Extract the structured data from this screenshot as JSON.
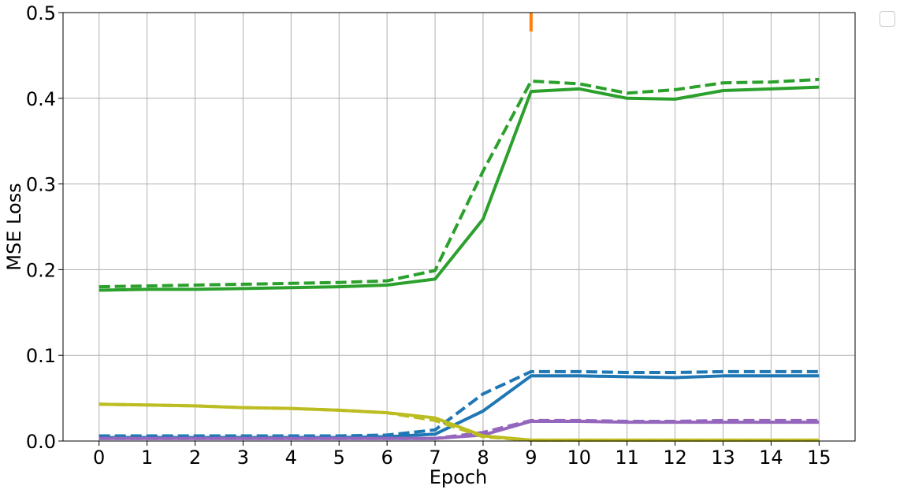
{
  "chart_data": {
    "type": "line",
    "xlabel": "Epoch",
    "ylabel": "MSE Loss",
    "xlim": [
      -0.75,
      15.75
    ],
    "ylim": [
      0.0,
      0.5
    ],
    "x": [
      0,
      1,
      2,
      3,
      4,
      5,
      6,
      7,
      8,
      9,
      10,
      11,
      12,
      13,
      14,
      15
    ],
    "x_ticks": [
      "0",
      "1",
      "2",
      "3",
      "4",
      "5",
      "6",
      "7",
      "8",
      "9",
      "10",
      "11",
      "12",
      "13",
      "14",
      "15"
    ],
    "y_ticks": [
      "0.0",
      "0.1",
      "0.2",
      "0.3",
      "0.4",
      "0.5"
    ],
    "y_tick_values": [
      0.0,
      0.1,
      0.2,
      0.3,
      0.4,
      0.5
    ],
    "grid": true,
    "legend": "outside top-right, empty",
    "series": [
      {
        "color": "#2ca02c",
        "style": "solid",
        "values": [
          0.176,
          0.177,
          0.177,
          0.178,
          0.179,
          0.18,
          0.182,
          0.189,
          0.259,
          0.408,
          0.411,
          0.4,
          0.399,
          0.409,
          0.411,
          0.413
        ]
      },
      {
        "color": "#2ca02c",
        "style": "dashed",
        "values": [
          0.18,
          0.181,
          0.182,
          0.183,
          0.184,
          0.185,
          0.187,
          0.199,
          0.315,
          0.42,
          0.417,
          0.406,
          0.41,
          0.418,
          0.419,
          0.422
        ]
      },
      {
        "color": "#1f77b4",
        "style": "solid",
        "values": [
          0.004,
          0.004,
          0.004,
          0.004,
          0.004,
          0.004,
          0.005,
          0.008,
          0.035,
          0.076,
          0.076,
          0.075,
          0.074,
          0.076,
          0.076,
          0.076
        ]
      },
      {
        "color": "#1f77b4",
        "style": "dashed",
        "values": [
          0.006,
          0.006,
          0.006,
          0.006,
          0.006,
          0.006,
          0.007,
          0.013,
          0.055,
          0.081,
          0.081,
          0.08,
          0.08,
          0.081,
          0.081,
          0.081
        ]
      },
      {
        "color": "#9467bd",
        "style": "solid",
        "values": [
          0.003,
          0.003,
          0.003,
          0.003,
          0.003,
          0.003,
          0.003,
          0.003,
          0.007,
          0.023,
          0.023,
          0.022,
          0.022,
          0.022,
          0.022,
          0.022
        ]
      },
      {
        "color": "#9467bd",
        "style": "dashed",
        "values": [
          0.003,
          0.003,
          0.003,
          0.003,
          0.003,
          0.003,
          0.003,
          0.003,
          0.01,
          0.024,
          0.024,
          0.023,
          0.023,
          0.024,
          0.024,
          0.024
        ]
      },
      {
        "color": "#bcbd22",
        "style": "solid",
        "values": [
          0.043,
          0.042,
          0.041,
          0.039,
          0.038,
          0.036,
          0.033,
          0.027,
          0.006,
          0.001,
          0.001,
          0.001,
          0.001,
          0.001,
          0.001,
          0.001
        ]
      },
      {
        "color": "#bcbd22",
        "style": "dashed",
        "values": [
          0.043,
          0.042,
          0.041,
          0.039,
          0.038,
          0.036,
          0.033,
          0.024,
          0.005,
          0.001,
          0.001,
          0.001,
          0.001,
          0.001,
          0.001,
          0.001
        ]
      }
    ],
    "spike": {
      "color": "#ff7f0e",
      "x": 9,
      "y_from": 0.478,
      "y_to": 0.5
    }
  }
}
